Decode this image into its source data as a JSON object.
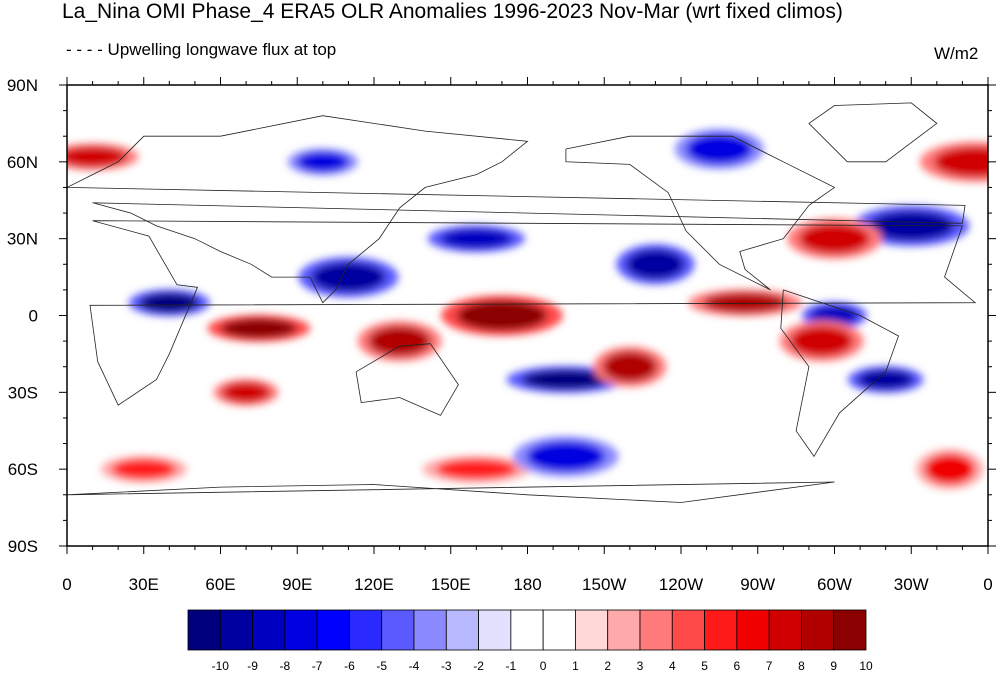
{
  "figure": {
    "title": "La_Nina OMI Phase_4 ERA5 OLR Anomalies 1996-2023 Nov-Mar (wrt fixed climos)",
    "subtitle": "Upwelling longwave flux at top",
    "units": "W/m2"
  },
  "axes": {
    "lat_labels": [
      "90N",
      "60N",
      "30N",
      "0",
      "30S",
      "60S",
      "90S"
    ],
    "lat_values": [
      90,
      60,
      30,
      0,
      -30,
      -60,
      -90
    ],
    "lon_labels": [
      "0",
      "30E",
      "60E",
      "90E",
      "120E",
      "150E",
      "180",
      "150W",
      "120W",
      "90W",
      "60W",
      "30W",
      "0"
    ],
    "lon_values": [
      0,
      30,
      60,
      90,
      120,
      150,
      180,
      210,
      240,
      270,
      300,
      330,
      360
    ]
  },
  "colorbar": {
    "labels": [
      "-10",
      "-9",
      "-8",
      "-7",
      "-6",
      "-5",
      "-4",
      "-3",
      "-2",
      "-1",
      "0",
      "1",
      "2",
      "3",
      "4",
      "5",
      "6",
      "7",
      "8",
      "9",
      "10"
    ],
    "colors": [
      "#00007f",
      "#0000a0",
      "#0000c0",
      "#0000e0",
      "#0000ff",
      "#2a2aff",
      "#5a5aff",
      "#8b8bff",
      "#b8b8ff",
      "#e2e2ff",
      "#ffffff",
      "#ffffff",
      "#ffd8d8",
      "#ffaaaa",
      "#ff7a7a",
      "#ff4a4a",
      "#ff1a1a",
      "#f00000",
      "#d00000",
      "#b00000",
      "#8b0000"
    ]
  },
  "anomaly_features": [
    {
      "lon": 300,
      "lat": 0,
      "v": -8
    },
    {
      "lon": 130,
      "lat": -10,
      "v": 9
    },
    {
      "lon": 75,
      "lat": -5,
      "v": 10
    },
    {
      "lon": 170,
      "lat": 0,
      "v": 10
    },
    {
      "lon": 40,
      "lat": 5,
      "v": -10
    },
    {
      "lon": 110,
      "lat": 15,
      "v": -9
    },
    {
      "lon": 195,
      "lat": -25,
      "v": -10
    },
    {
      "lon": 230,
      "lat": 20,
      "v": -9
    },
    {
      "lon": 160,
      "lat": 30,
      "v": -8
    },
    {
      "lon": 330,
      "lat": 35,
      "v": -9
    },
    {
      "lon": 320,
      "lat": -25,
      "v": -9
    },
    {
      "lon": 300,
      "lat": 30,
      "v": 8
    },
    {
      "lon": 265,
      "lat": 5,
      "v": 9
    },
    {
      "lon": 220,
      "lat": -20,
      "v": 9
    },
    {
      "lon": 10,
      "lat": 62,
      "v": 8
    },
    {
      "lon": 355,
      "lat": 60,
      "v": 8
    },
    {
      "lon": 100,
      "lat": 60,
      "v": -7
    },
    {
      "lon": 255,
      "lat": 65,
      "v": -7
    },
    {
      "lon": 160,
      "lat": -60,
      "v": 6
    },
    {
      "lon": 345,
      "lat": -60,
      "v": 7
    },
    {
      "lon": 30,
      "lat": -60,
      "v": 6
    },
    {
      "lon": 195,
      "lat": -55,
      "v": -7
    },
    {
      "lon": 70,
      "lat": -30,
      "v": 8
    },
    {
      "lon": 295,
      "lat": -10,
      "v": 8
    }
  ]
}
